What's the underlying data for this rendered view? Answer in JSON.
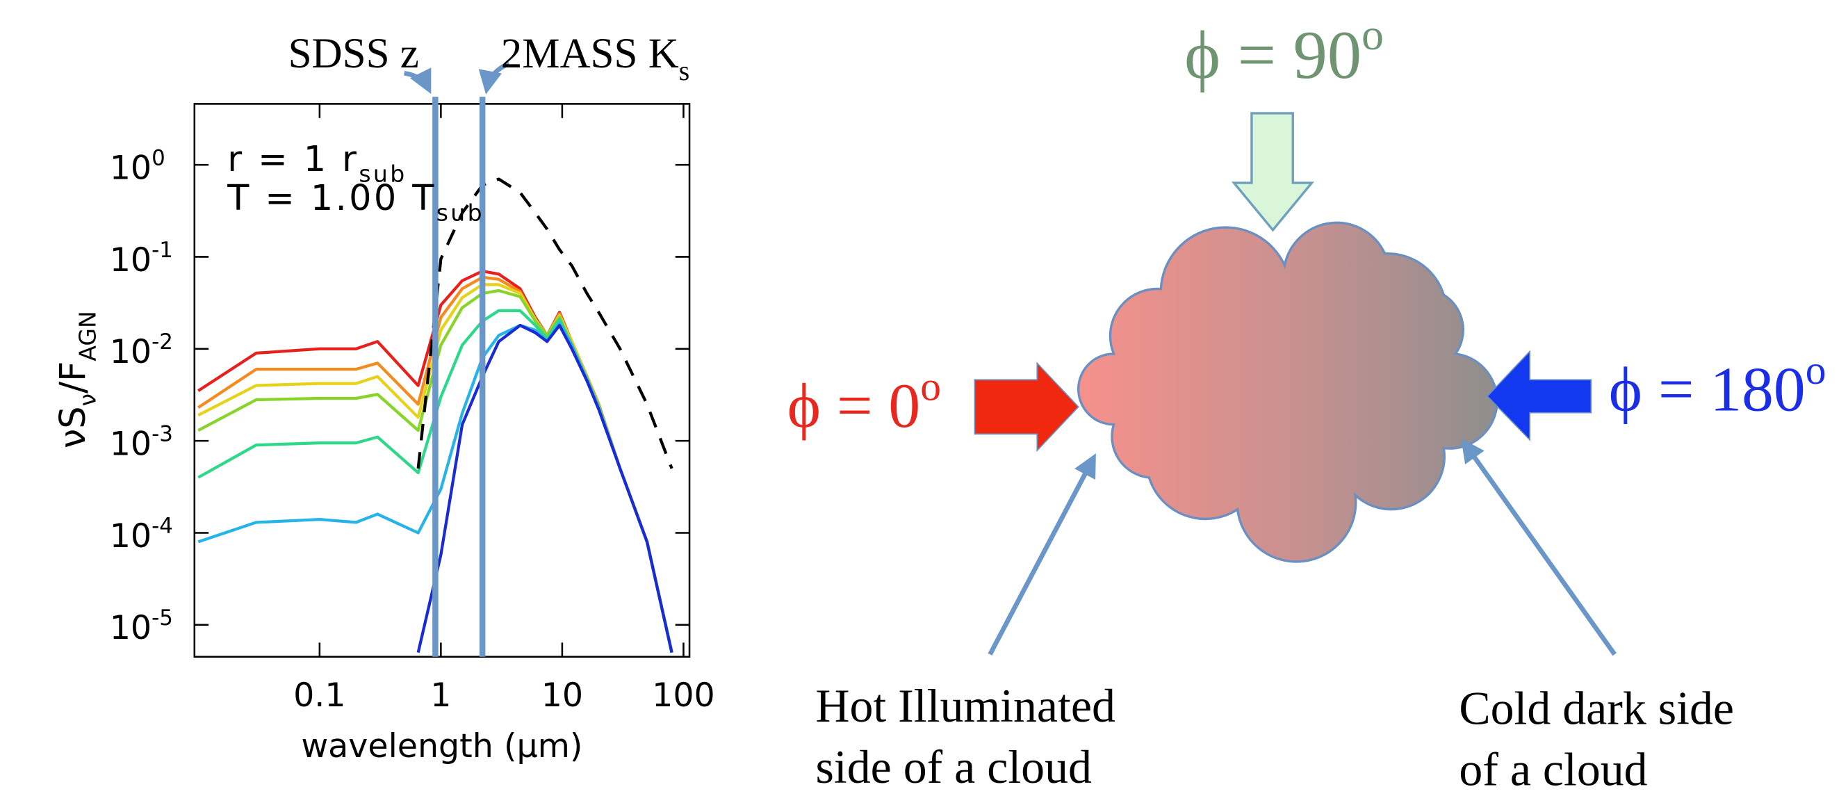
{
  "chart_data": {
    "type": "line",
    "x_label": "wavelength (μm)",
    "y_label": [
      {
        "text": "νS"
      },
      {
        "text": "ν",
        "pos": "sub"
      },
      {
        "text": "/F"
      },
      {
        "text": "AGN",
        "pos": "sub"
      }
    ],
    "xscale": "log",
    "yscale": "log",
    "xlim": [
      0.0093,
      112
    ],
    "ylim": [
      4.5e-06,
      4.6
    ],
    "xticks": [
      0.1,
      1,
      10,
      100
    ],
    "yticks": [
      {
        "value": 1,
        "label": "10",
        "exponent": "0"
      },
      {
        "value": 0.1,
        "label": "10",
        "exponent": "-1"
      },
      {
        "value": 0.01,
        "label": "10",
        "exponent": "-2"
      },
      {
        "value": 0.001,
        "label": "10",
        "exponent": "-3"
      },
      {
        "value": 0.0001,
        "label": "10",
        "exponent": "-4"
      },
      {
        "value": 1e-05,
        "label": "10",
        "exponent": "-5"
      }
    ],
    "annotations": [
      [
        {
          "text": "r = 1 r"
        },
        {
          "text": "sub",
          "pos": "sub"
        }
      ],
      [
        {
          "text": "T = 1.00 T"
        },
        {
          "text": "sub",
          "pos": "sub"
        }
      ]
    ],
    "markers": [
      {
        "x": 0.9,
        "label": [
          {
            "text": "SDSS z"
          }
        ]
      },
      {
        "x": 2.2,
        "label": [
          {
            "text": "2MASS K"
          },
          {
            "text": "s",
            "pos": "sub"
          }
        ]
      }
    ],
    "marker_color": "#6a96c8",
    "x": [
      0.01,
      0.03,
      0.1,
      0.2,
      0.3,
      0.65,
      1,
      1.5,
      2.2,
      3,
      4.5,
      6,
      7.5,
      9.5,
      12,
      16,
      20,
      30,
      50,
      80
    ],
    "series": [
      {
        "color": "#e8201c",
        "values": [
          0.0035,
          0.009,
          0.01,
          0.01,
          0.012,
          0.004,
          0.03,
          0.055,
          0.07,
          0.065,
          0.045,
          0.022,
          0.014,
          0.025,
          0.012,
          0.005,
          0.0025,
          0.0005,
          8e-05,
          5e-06
        ]
      },
      {
        "color": "#f58a1e",
        "values": [
          0.0023,
          0.006,
          0.006,
          0.006,
          0.007,
          0.0025,
          0.022,
          0.045,
          0.06,
          0.057,
          0.042,
          0.021,
          0.014,
          0.024,
          0.012,
          0.005,
          0.0025,
          0.0005,
          8e-05,
          5e-06
        ]
      },
      {
        "color": "#e6d21a",
        "values": [
          0.0019,
          0.004,
          0.0042,
          0.0042,
          0.005,
          0.0018,
          0.016,
          0.036,
          0.05,
          0.05,
          0.04,
          0.021,
          0.014,
          0.023,
          0.012,
          0.0049,
          0.0024,
          0.0005,
          8e-05,
          5e-06
        ]
      },
      {
        "color": "#88d42a",
        "values": [
          0.0013,
          0.0028,
          0.0029,
          0.0029,
          0.0032,
          0.0013,
          0.011,
          0.028,
          0.04,
          0.043,
          0.037,
          0.02,
          0.014,
          0.022,
          0.011,
          0.0048,
          0.0024,
          0.0005,
          8e-05,
          5e-06
        ]
      },
      {
        "color": "#2ed88a",
        "values": [
          0.0004,
          0.0009,
          0.00095,
          0.00095,
          0.0011,
          0.00045,
          0.003,
          0.011,
          0.02,
          0.026,
          0.026,
          0.018,
          0.013,
          0.021,
          0.011,
          0.0047,
          0.0023,
          0.0005,
          8e-05,
          5e-06
        ]
      },
      {
        "color": "#26b4e8",
        "values": [
          8e-05,
          0.00013,
          0.00014,
          0.00013,
          0.00016,
          0.0001,
          0.0003,
          0.002,
          0.008,
          0.014,
          0.018,
          0.016,
          0.012,
          0.019,
          0.011,
          0.0046,
          0.0023,
          0.0005,
          8e-05,
          5e-06
        ]
      },
      {
        "color": "#1a2bd4",
        "values": [
          null,
          null,
          null,
          null,
          null,
          5e-06,
          5.8e-05,
          0.0015,
          0.005,
          0.012,
          0.018,
          0.015,
          0.012,
          0.018,
          0.01,
          0.0045,
          0.0022,
          0.0005,
          8e-05,
          5e-06
        ]
      },
      {
        "color": "#000000",
        "dashed": true,
        "values": [
          null,
          null,
          null,
          null,
          null,
          0.0005,
          0.095,
          0.3,
          0.6,
          0.7,
          0.5,
          0.3,
          0.2,
          0.12,
          0.08,
          0.04,
          0.025,
          0.01,
          0.0025,
          0.0005
        ]
      }
    ]
  },
  "diagram": {
    "phi_90": [
      {
        "text": "ϕ = 90"
      },
      {
        "text": "o",
        "pos": "sup"
      }
    ],
    "phi_0": [
      {
        "text": "ϕ = 0"
      },
      {
        "text": "o",
        "pos": "sup"
      }
    ],
    "phi_180": [
      {
        "text": "ϕ = 180"
      },
      {
        "text": "o",
        "pos": "sup"
      }
    ],
    "hot_note": [
      "Hot Illuminated",
      "side of a cloud"
    ],
    "cold_note": [
      "Cold dark side",
      "of a cloud"
    ]
  }
}
